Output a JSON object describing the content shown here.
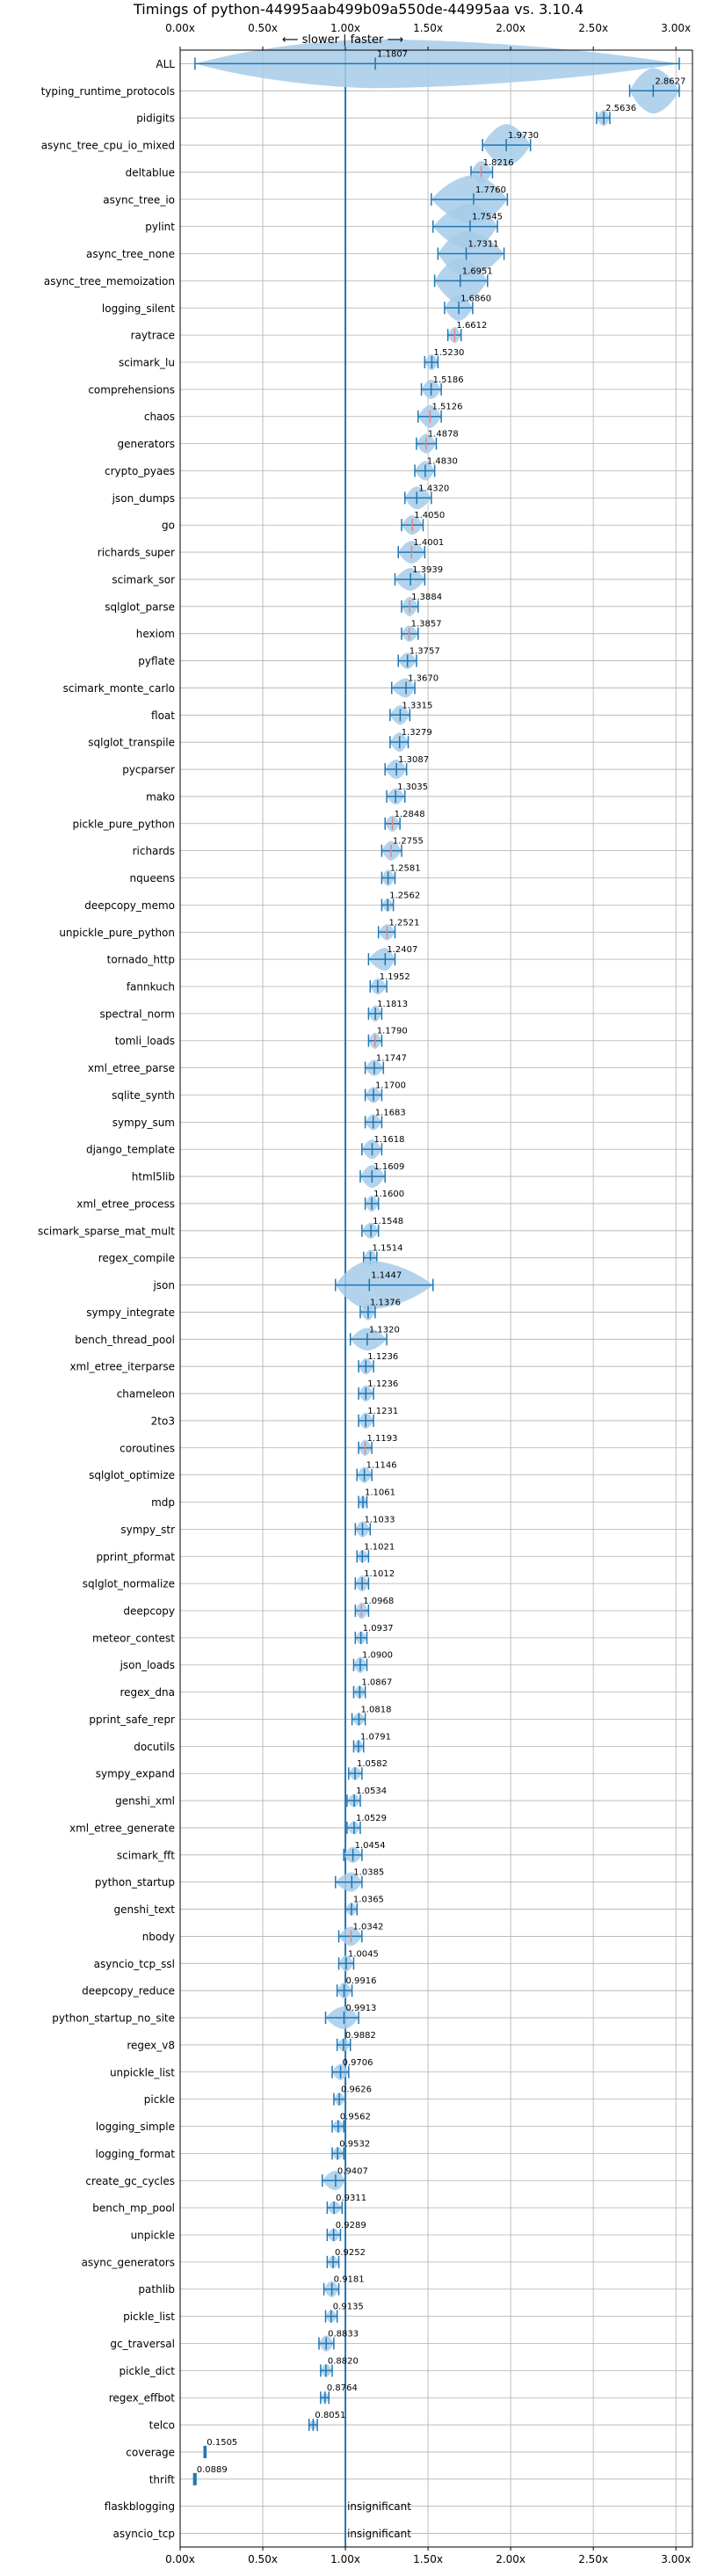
{
  "chart_data": {
    "type": "violin",
    "title": "Timings of python-44995aab499b09a550de-44995aa vs. 3.10.4",
    "direction_label": "⟵ slower | faster ⟶",
    "xlim": [
      0.0,
      3.1
    ],
    "x_ticks": [
      0.0,
      0.5,
      1.0,
      1.5,
      2.0,
      2.5,
      3.0
    ],
    "x_tick_labels": [
      "0.00x",
      "0.50x",
      "1.00x",
      "1.50x",
      "2.00x",
      "2.50x",
      "3.00x"
    ],
    "reference_line": 1.0,
    "grid": true,
    "insignificant_label": "insignificant",
    "colors": {
      "violin": "#a6cbe9",
      "line": "#1f77b4",
      "highlight": "#f08080"
    },
    "benchmarks": [
      {
        "name": "ALL",
        "value": 1.1807,
        "label": "1.1807",
        "lo": 0.09,
        "hi": 3.02,
        "width": 0.17,
        "hl": false
      },
      {
        "name": "typing_runtime_protocols",
        "value": 2.8627,
        "label": "2.8627",
        "lo": 2.72,
        "hi": 3.02,
        "width": 0.14,
        "hl": false
      },
      {
        "name": "pidigits",
        "value": 2.5636,
        "label": "2.5636",
        "lo": 2.52,
        "hi": 2.6,
        "width": 0.05,
        "hl": false
      },
      {
        "name": "async_tree_cpu_io_mixed",
        "value": 1.973,
        "label": "1.9730",
        "lo": 1.83,
        "hi": 2.12,
        "width": 0.13,
        "hl": false
      },
      {
        "name": "deltablue",
        "value": 1.8216,
        "label": "1.8216",
        "lo": 1.76,
        "hi": 1.89,
        "width": 0.07,
        "hl": true
      },
      {
        "name": "async_tree_io",
        "value": 1.776,
        "label": "1.7760",
        "lo": 1.52,
        "hi": 1.98,
        "width": 0.15,
        "hl": false
      },
      {
        "name": "pylint",
        "value": 1.7545,
        "label": "1.7545",
        "lo": 1.53,
        "hi": 1.92,
        "width": 0.14,
        "hl": false
      },
      {
        "name": "async_tree_none",
        "value": 1.7311,
        "label": "1.7311",
        "lo": 1.56,
        "hi": 1.96,
        "width": 0.14,
        "hl": false
      },
      {
        "name": "async_tree_memoization",
        "value": 1.6951,
        "label": "1.6951",
        "lo": 1.54,
        "hi": 1.86,
        "width": 0.14,
        "hl": false
      },
      {
        "name": "logging_silent",
        "value": 1.686,
        "label": "1.6860",
        "lo": 1.6,
        "hi": 1.77,
        "width": 0.08,
        "hl": false
      },
      {
        "name": "raytrace",
        "value": 1.6612,
        "label": "1.6612",
        "lo": 1.62,
        "hi": 1.7,
        "width": 0.05,
        "hl": true
      },
      {
        "name": "scimark_lu",
        "value": 1.523,
        "label": "1.5230",
        "lo": 1.48,
        "hi": 1.56,
        "width": 0.05,
        "hl": false
      },
      {
        "name": "comprehensions",
        "value": 1.5186,
        "label": "1.5186",
        "lo": 1.46,
        "hi": 1.58,
        "width": 0.06,
        "hl": false
      },
      {
        "name": "chaos",
        "value": 1.5126,
        "label": "1.5126",
        "lo": 1.44,
        "hi": 1.58,
        "width": 0.07,
        "hl": true
      },
      {
        "name": "generators",
        "value": 1.4878,
        "label": "1.4878",
        "lo": 1.43,
        "hi": 1.55,
        "width": 0.06,
        "hl": true
      },
      {
        "name": "crypto_pyaes",
        "value": 1.483,
        "label": "1.4830",
        "lo": 1.42,
        "hi": 1.54,
        "width": 0.06,
        "hl": false
      },
      {
        "name": "json_dumps",
        "value": 1.432,
        "label": "1.4320",
        "lo": 1.36,
        "hi": 1.52,
        "width": 0.07,
        "hl": false
      },
      {
        "name": "go",
        "value": 1.405,
        "label": "1.4050",
        "lo": 1.34,
        "hi": 1.47,
        "width": 0.06,
        "hl": true
      },
      {
        "name": "richards_super",
        "value": 1.4001,
        "label": "1.4001",
        "lo": 1.32,
        "hi": 1.48,
        "width": 0.07,
        "hl": true
      },
      {
        "name": "scimark_sor",
        "value": 1.3939,
        "label": "1.3939",
        "lo": 1.3,
        "hi": 1.48,
        "width": 0.07,
        "hl": false
      },
      {
        "name": "sqlglot_parse",
        "value": 1.3884,
        "label": "1.3884",
        "lo": 1.34,
        "hi": 1.44,
        "width": 0.06,
        "hl": true
      },
      {
        "name": "hexiom",
        "value": 1.3857,
        "label": "1.3857",
        "lo": 1.34,
        "hi": 1.44,
        "width": 0.05,
        "hl": true
      },
      {
        "name": "pyflate",
        "value": 1.3757,
        "label": "1.3757",
        "lo": 1.32,
        "hi": 1.43,
        "width": 0.05,
        "hl": false
      },
      {
        "name": "scimark_monte_carlo",
        "value": 1.367,
        "label": "1.3670",
        "lo": 1.28,
        "hi": 1.42,
        "width": 0.06,
        "hl": false
      },
      {
        "name": "float",
        "value": 1.3315,
        "label": "1.3315",
        "lo": 1.27,
        "hi": 1.39,
        "width": 0.06,
        "hl": false
      },
      {
        "name": "sqlglot_transpile",
        "value": 1.3279,
        "label": "1.3279",
        "lo": 1.27,
        "hi": 1.38,
        "width": 0.06,
        "hl": false
      },
      {
        "name": "pycparser",
        "value": 1.3087,
        "label": "1.3087",
        "lo": 1.24,
        "hi": 1.37,
        "width": 0.06,
        "hl": false
      },
      {
        "name": "mako",
        "value": 1.3035,
        "label": "1.3035",
        "lo": 1.25,
        "hi": 1.36,
        "width": 0.05,
        "hl": false
      },
      {
        "name": "pickle_pure_python",
        "value": 1.2848,
        "label": "1.2848",
        "lo": 1.24,
        "hi": 1.33,
        "width": 0.05,
        "hl": true
      },
      {
        "name": "richards",
        "value": 1.2755,
        "label": "1.2755",
        "lo": 1.22,
        "hi": 1.34,
        "width": 0.06,
        "hl": true
      },
      {
        "name": "nqueens",
        "value": 1.2581,
        "label": "1.2581",
        "lo": 1.22,
        "hi": 1.3,
        "width": 0.05,
        "hl": false
      },
      {
        "name": "deepcopy_memo",
        "value": 1.2562,
        "label": "1.2562",
        "lo": 1.22,
        "hi": 1.29,
        "width": 0.04,
        "hl": false
      },
      {
        "name": "unpickle_pure_python",
        "value": 1.2521,
        "label": "1.2521",
        "lo": 1.2,
        "hi": 1.3,
        "width": 0.05,
        "hl": true
      },
      {
        "name": "tornado_http",
        "value": 1.2407,
        "label": "1.2407",
        "lo": 1.14,
        "hi": 1.3,
        "width": 0.07,
        "hl": false
      },
      {
        "name": "fannkuch",
        "value": 1.1952,
        "label": "1.1952",
        "lo": 1.15,
        "hi": 1.25,
        "width": 0.05,
        "hl": false
      },
      {
        "name": "spectral_norm",
        "value": 1.1813,
        "label": "1.1813",
        "lo": 1.14,
        "hi": 1.22,
        "width": 0.05,
        "hl": false
      },
      {
        "name": "tomli_loads",
        "value": 1.179,
        "label": "1.1790",
        "lo": 1.14,
        "hi": 1.22,
        "width": 0.05,
        "hl": true
      },
      {
        "name": "xml_etree_parse",
        "value": 1.1747,
        "label": "1.1747",
        "lo": 1.12,
        "hi": 1.23,
        "width": 0.05,
        "hl": false
      },
      {
        "name": "sqlite_synth",
        "value": 1.17,
        "label": "1.1700",
        "lo": 1.12,
        "hi": 1.22,
        "width": 0.05,
        "hl": false
      },
      {
        "name": "sympy_sum",
        "value": 1.1683,
        "label": "1.1683",
        "lo": 1.12,
        "hi": 1.22,
        "width": 0.05,
        "hl": false
      },
      {
        "name": "django_template",
        "value": 1.1618,
        "label": "1.1618",
        "lo": 1.1,
        "hi": 1.22,
        "width": 0.06,
        "hl": false
      },
      {
        "name": "html5lib",
        "value": 1.1609,
        "label": "1.1609",
        "lo": 1.09,
        "hi": 1.24,
        "width": 0.07,
        "hl": false
      },
      {
        "name": "xml_etree_process",
        "value": 1.16,
        "label": "1.1600",
        "lo": 1.12,
        "hi": 1.2,
        "width": 0.05,
        "hl": false
      },
      {
        "name": "scimark_sparse_mat_mult",
        "value": 1.1548,
        "label": "1.1548",
        "lo": 1.1,
        "hi": 1.2,
        "width": 0.05,
        "hl": false
      },
      {
        "name": "regex_compile",
        "value": 1.1514,
        "label": "1.1514",
        "lo": 1.11,
        "hi": 1.19,
        "width": 0.05,
        "hl": false
      },
      {
        "name": "json",
        "value": 1.1447,
        "label": "1.1447",
        "lo": 0.94,
        "hi": 1.53,
        "width": 0.15,
        "hl": false
      },
      {
        "name": "sympy_integrate",
        "value": 1.1376,
        "label": "1.1376",
        "lo": 1.09,
        "hi": 1.18,
        "width": 0.05,
        "hl": false
      },
      {
        "name": "bench_thread_pool",
        "value": 1.132,
        "label": "1.1320",
        "lo": 1.03,
        "hi": 1.25,
        "width": 0.07,
        "hl": false
      },
      {
        "name": "xml_etree_iterparse",
        "value": 1.1236,
        "label": "1.1236",
        "lo": 1.08,
        "hi": 1.17,
        "width": 0.05,
        "hl": false
      },
      {
        "name": "chameleon",
        "value": 1.1236,
        "label": "1.1236",
        "lo": 1.08,
        "hi": 1.17,
        "width": 0.05,
        "hl": false
      },
      {
        "name": "2to3",
        "value": 1.1231,
        "label": "1.1231",
        "lo": 1.08,
        "hi": 1.17,
        "width": 0.05,
        "hl": false
      },
      {
        "name": "coroutines",
        "value": 1.1193,
        "label": "1.1193",
        "lo": 1.08,
        "hi": 1.16,
        "width": 0.05,
        "hl": true
      },
      {
        "name": "sqlglot_optimize",
        "value": 1.1146,
        "label": "1.1146",
        "lo": 1.07,
        "hi": 1.16,
        "width": 0.05,
        "hl": false
      },
      {
        "name": "mdp",
        "value": 1.1061,
        "label": "1.1061",
        "lo": 1.08,
        "hi": 1.13,
        "width": 0.04,
        "hl": false
      },
      {
        "name": "sympy_str",
        "value": 1.1033,
        "label": "1.1033",
        "lo": 1.06,
        "hi": 1.15,
        "width": 0.05,
        "hl": false
      },
      {
        "name": "pprint_pformat",
        "value": 1.1021,
        "label": "1.1021",
        "lo": 1.07,
        "hi": 1.14,
        "width": 0.04,
        "hl": false
      },
      {
        "name": "sqlglot_normalize",
        "value": 1.1012,
        "label": "1.1012",
        "lo": 1.06,
        "hi": 1.14,
        "width": 0.05,
        "hl": false
      },
      {
        "name": "deepcopy",
        "value": 1.0968,
        "label": "1.0968",
        "lo": 1.06,
        "hi": 1.14,
        "width": 0.05,
        "hl": true
      },
      {
        "name": "meteor_contest",
        "value": 1.0937,
        "label": "1.0937",
        "lo": 1.06,
        "hi": 1.13,
        "width": 0.04,
        "hl": false
      },
      {
        "name": "json_loads",
        "value": 1.09,
        "label": "1.0900",
        "lo": 1.05,
        "hi": 1.13,
        "width": 0.05,
        "hl": false
      },
      {
        "name": "regex_dna",
        "value": 1.0867,
        "label": "1.0867",
        "lo": 1.05,
        "hi": 1.12,
        "width": 0.04,
        "hl": false
      },
      {
        "name": "pprint_safe_repr",
        "value": 1.0818,
        "label": "1.0818",
        "lo": 1.04,
        "hi": 1.12,
        "width": 0.04,
        "hl": false
      },
      {
        "name": "docutils",
        "value": 1.0791,
        "label": "1.0791",
        "lo": 1.05,
        "hi": 1.11,
        "width": 0.04,
        "hl": false
      },
      {
        "name": "sympy_expand",
        "value": 1.0582,
        "label": "1.0582",
        "lo": 1.02,
        "hi": 1.1,
        "width": 0.04,
        "hl": false
      },
      {
        "name": "genshi_xml",
        "value": 1.0534,
        "label": "1.0534",
        "lo": 1.01,
        "hi": 1.09,
        "width": 0.04,
        "hl": false
      },
      {
        "name": "xml_etree_generate",
        "value": 1.0529,
        "label": "1.0529",
        "lo": 1.01,
        "hi": 1.09,
        "width": 0.04,
        "hl": false
      },
      {
        "name": "scimark_fft",
        "value": 1.0454,
        "label": "1.0454",
        "lo": 0.99,
        "hi": 1.1,
        "width": 0.05,
        "hl": false
      },
      {
        "name": "python_startup",
        "value": 1.0385,
        "label": "1.0385",
        "lo": 0.94,
        "hi": 1.1,
        "width": 0.06,
        "hl": false
      },
      {
        "name": "genshi_text",
        "value": 1.0365,
        "label": "1.0365",
        "lo": 1.0,
        "hi": 1.07,
        "width": 0.04,
        "hl": false
      },
      {
        "name": "nbody",
        "value": 1.0342,
        "label": "1.0342",
        "lo": 0.96,
        "hi": 1.1,
        "width": 0.06,
        "hl": true
      },
      {
        "name": "asyncio_tcp_ssl",
        "value": 1.0045,
        "label": "1.0045",
        "lo": 0.96,
        "hi": 1.05,
        "width": 0.05,
        "hl": false
      },
      {
        "name": "deepcopy_reduce",
        "value": 0.9916,
        "label": "0.9916",
        "lo": 0.95,
        "hi": 1.04,
        "width": 0.05,
        "hl": false
      },
      {
        "name": "python_startup_no_site",
        "value": 0.9913,
        "label": "0.9913",
        "lo": 0.88,
        "hi": 1.08,
        "width": 0.07,
        "hl": false
      },
      {
        "name": "regex_v8",
        "value": 0.9882,
        "label": "0.9882",
        "lo": 0.95,
        "hi": 1.03,
        "width": 0.04,
        "hl": false
      },
      {
        "name": "unpickle_list",
        "value": 0.9706,
        "label": "0.9706",
        "lo": 0.92,
        "hi": 1.02,
        "width": 0.05,
        "hl": false
      },
      {
        "name": "pickle",
        "value": 0.9626,
        "label": "0.9626",
        "lo": 0.93,
        "hi": 1.0,
        "width": 0.04,
        "hl": false
      },
      {
        "name": "logging_simple",
        "value": 0.9562,
        "label": "0.9562",
        "lo": 0.92,
        "hi": 0.99,
        "width": 0.04,
        "hl": false
      },
      {
        "name": "logging_format",
        "value": 0.9532,
        "label": "0.9532",
        "lo": 0.92,
        "hi": 0.99,
        "width": 0.04,
        "hl": false
      },
      {
        "name": "create_gc_cycles",
        "value": 0.9407,
        "label": "0.9407",
        "lo": 0.86,
        "hi": 1.0,
        "width": 0.06,
        "hl": false
      },
      {
        "name": "bench_mp_pool",
        "value": 0.9311,
        "label": "0.9311",
        "lo": 0.89,
        "hi": 0.98,
        "width": 0.04,
        "hl": false
      },
      {
        "name": "unpickle",
        "value": 0.9289,
        "label": "0.9289",
        "lo": 0.89,
        "hi": 0.97,
        "width": 0.04,
        "hl": false
      },
      {
        "name": "async_generators",
        "value": 0.9252,
        "label": "0.9252",
        "lo": 0.89,
        "hi": 0.96,
        "width": 0.04,
        "hl": false
      },
      {
        "name": "pathlib",
        "value": 0.9181,
        "label": "0.9181",
        "lo": 0.87,
        "hi": 0.96,
        "width": 0.05,
        "hl": false
      },
      {
        "name": "pickle_list",
        "value": 0.9135,
        "label": "0.9135",
        "lo": 0.88,
        "hi": 0.95,
        "width": 0.04,
        "hl": false
      },
      {
        "name": "gc_traversal",
        "value": 0.8833,
        "label": "0.8833",
        "lo": 0.84,
        "hi": 0.93,
        "width": 0.05,
        "hl": false
      },
      {
        "name": "pickle_dict",
        "value": 0.882,
        "label": "0.8820",
        "lo": 0.85,
        "hi": 0.92,
        "width": 0.04,
        "hl": false
      },
      {
        "name": "regex_effbot",
        "value": 0.8764,
        "label": "0.8764",
        "lo": 0.85,
        "hi": 0.9,
        "width": 0.03,
        "hl": false
      },
      {
        "name": "telco",
        "value": 0.8051,
        "label": "0.8051",
        "lo": 0.78,
        "hi": 0.83,
        "width": 0.03,
        "hl": false
      },
      {
        "name": "coverage",
        "value": 0.1505,
        "label": "0.1505",
        "lo": 0.145,
        "hi": 0.156,
        "width": 0.02,
        "hl": false
      },
      {
        "name": "thrift",
        "value": 0.0889,
        "label": "0.0889",
        "lo": 0.082,
        "hi": 0.096,
        "width": 0.02,
        "hl": false
      },
      {
        "name": "flaskblogging",
        "value": null,
        "label": "",
        "lo": null,
        "hi": null,
        "width": 0,
        "hl": false
      },
      {
        "name": "asyncio_tcp",
        "value": null,
        "label": "",
        "lo": null,
        "hi": null,
        "width": 0,
        "hl": false
      }
    ]
  }
}
